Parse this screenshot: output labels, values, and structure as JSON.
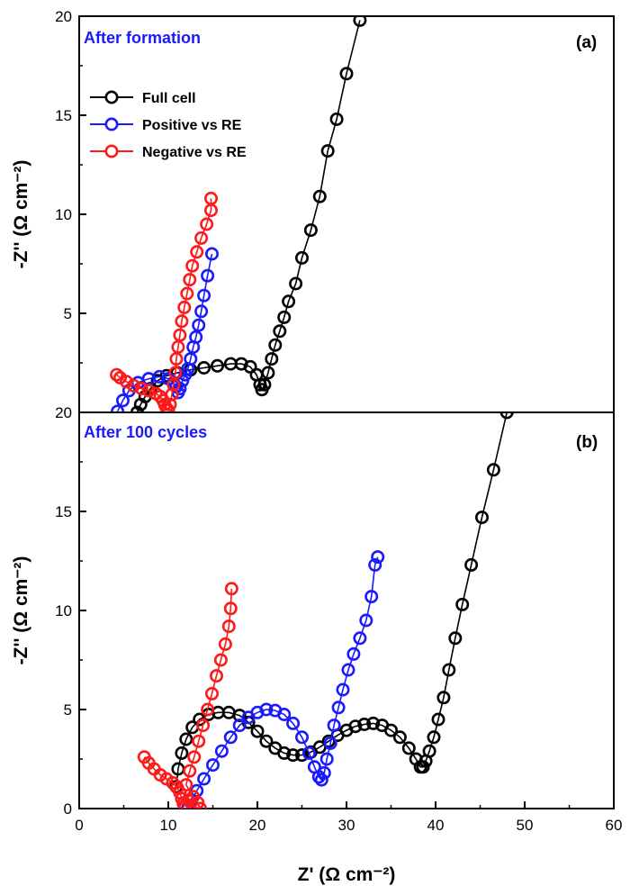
{
  "chart_data": [
    {
      "type": "line",
      "panel_label": "(a)",
      "title": "After formation",
      "title_color": "#1a1aff",
      "xlabel": "Z' (Ω cm⁻²)",
      "ylabel": "-Z'' (Ω cm⁻²)",
      "xlim": [
        0,
        60
      ],
      "ylim": [
        0,
        20
      ],
      "yticks": [
        5,
        10,
        15,
        20
      ],
      "legend_position": "top-left",
      "series": [
        {
          "name": "Full cell",
          "color": "#000000",
          "points": [
            [
              6.5,
              0.0
            ],
            [
              6.9,
              0.4
            ],
            [
              7.4,
              0.8
            ],
            [
              8.0,
              1.2
            ],
            [
              8.8,
              1.6
            ],
            [
              9.8,
              1.85
            ],
            [
              11.0,
              2.0
            ],
            [
              12.5,
              2.15
            ],
            [
              14.0,
              2.25
            ],
            [
              15.5,
              2.35
            ],
            [
              17.0,
              2.45
            ],
            [
              18.2,
              2.45
            ],
            [
              19.2,
              2.3
            ],
            [
              19.9,
              1.9
            ],
            [
              20.3,
              1.4
            ],
            [
              20.5,
              1.15
            ],
            [
              20.8,
              1.4
            ],
            [
              21.2,
              2.0
            ],
            [
              21.6,
              2.7
            ],
            [
              22.0,
              3.4
            ],
            [
              22.5,
              4.1
            ],
            [
              23.0,
              4.8
            ],
            [
              23.5,
              5.6
            ],
            [
              24.3,
              6.5
            ],
            [
              25.0,
              7.8
            ],
            [
              26.0,
              9.2
            ],
            [
              27.0,
              10.9
            ],
            [
              27.9,
              13.2
            ],
            [
              28.9,
              14.8
            ],
            [
              30.0,
              17.1
            ],
            [
              31.5,
              19.8
            ]
          ]
        },
        {
          "name": "Positive vs RE",
          "color": "#1a1aff",
          "points": [
            [
              4.3,
              0.05
            ],
            [
              4.9,
              0.6
            ],
            [
              5.6,
              1.1
            ],
            [
              6.6,
              1.5
            ],
            [
              7.8,
              1.7
            ],
            [
              9.0,
              1.8
            ],
            [
              10.0,
              1.7
            ],
            [
              10.6,
              1.5
            ],
            [
              10.9,
              1.3
            ],
            [
              11.1,
              1.0
            ],
            [
              11.3,
              1.2
            ],
            [
              11.6,
              1.6
            ],
            [
              11.9,
              1.9
            ],
            [
              12.2,
              2.2
            ],
            [
              12.5,
              2.7
            ],
            [
              12.8,
              3.3
            ],
            [
              13.1,
              3.8
            ],
            [
              13.4,
              4.4
            ],
            [
              13.7,
              5.1
            ],
            [
              14.0,
              5.9
            ],
            [
              14.4,
              6.9
            ],
            [
              14.9,
              8.0
            ]
          ]
        },
        {
          "name": "Negative vs RE",
          "color": "#ff1a1a",
          "points": [
            [
              4.2,
              1.9
            ],
            [
              4.6,
              1.75
            ],
            [
              5.3,
              1.55
            ],
            [
              6.1,
              1.35
            ],
            [
              7.0,
              1.2
            ],
            [
              7.8,
              1.1
            ],
            [
              8.6,
              0.95
            ],
            [
              9.1,
              0.8
            ],
            [
              9.4,
              0.6
            ],
            [
              9.6,
              0.4
            ],
            [
              9.8,
              0.2
            ],
            [
              10.0,
              0.1
            ],
            [
              10.2,
              0.4
            ],
            [
              10.4,
              0.9
            ],
            [
              10.6,
              1.4
            ],
            [
              10.8,
              2.0
            ],
            [
              10.9,
              2.7
            ],
            [
              11.1,
              3.3
            ],
            [
              11.3,
              3.9
            ],
            [
              11.5,
              4.6
            ],
            [
              11.8,
              5.3
            ],
            [
              12.1,
              6.0
            ],
            [
              12.4,
              6.7
            ],
            [
              12.7,
              7.4
            ],
            [
              13.2,
              8.1
            ],
            [
              13.7,
              8.8
            ],
            [
              14.3,
              9.5
            ],
            [
              14.8,
              10.2
            ],
            [
              14.8,
              10.8
            ]
          ]
        }
      ]
    },
    {
      "type": "line",
      "panel_label": "(b)",
      "title": "After 100 cycles",
      "title_color": "#1a1aff",
      "xlabel": "Z' (Ω cm⁻²)",
      "ylabel": "-Z'' (Ω cm⁻²)",
      "xlim": [
        0,
        60
      ],
      "ylim": [
        0,
        20
      ],
      "xticks": [
        0,
        10,
        20,
        30,
        40,
        50,
        60
      ],
      "yticks": [
        0,
        5,
        10,
        15,
        20
      ],
      "series": [
        {
          "name": "Full cell",
          "color": "#000000",
          "points": [
            [
              10.9,
              1.1
            ],
            [
              11.1,
              2.0
            ],
            [
              11.5,
              2.8
            ],
            [
              12.0,
              3.5
            ],
            [
              12.7,
              4.1
            ],
            [
              13.5,
              4.5
            ],
            [
              14.5,
              4.75
            ],
            [
              15.6,
              4.85
            ],
            [
              16.8,
              4.85
            ],
            [
              18.0,
              4.7
            ],
            [
              19.0,
              4.35
            ],
            [
              20.0,
              3.9
            ],
            [
              21.0,
              3.4
            ],
            [
              22.0,
              3.05
            ],
            [
              23.0,
              2.8
            ],
            [
              24.0,
              2.7
            ],
            [
              25.0,
              2.7
            ],
            [
              26.0,
              2.85
            ],
            [
              27.0,
              3.1
            ],
            [
              28.0,
              3.4
            ],
            [
              29.0,
              3.7
            ],
            [
              30.0,
              3.95
            ],
            [
              31.0,
              4.15
            ],
            [
              32.0,
              4.25
            ],
            [
              33.0,
              4.3
            ],
            [
              34.0,
              4.2
            ],
            [
              35.0,
              3.95
            ],
            [
              36.0,
              3.6
            ],
            [
              37.0,
              3.05
            ],
            [
              37.8,
              2.5
            ],
            [
              38.3,
              2.1
            ],
            [
              38.6,
              2.1
            ],
            [
              38.9,
              2.4
            ],
            [
              39.3,
              2.9
            ],
            [
              39.8,
              3.6
            ],
            [
              40.3,
              4.5
            ],
            [
              40.9,
              5.6
            ],
            [
              41.5,
              7.0
            ],
            [
              42.2,
              8.6
            ],
            [
              43.0,
              10.3
            ],
            [
              44.0,
              12.3
            ],
            [
              45.2,
              14.7
            ],
            [
              46.5,
              17.1
            ],
            [
              48.0,
              20.0
            ]
          ]
        },
        {
          "name": "Positive vs RE",
          "color": "#1a1aff",
          "points": [
            [
              12.2,
              0.0
            ],
            [
              12.6,
              0.4
            ],
            [
              13.2,
              0.9
            ],
            [
              14.0,
              1.5
            ],
            [
              15.0,
              2.2
            ],
            [
              16.0,
              2.9
            ],
            [
              17.0,
              3.6
            ],
            [
              18.0,
              4.2
            ],
            [
              19.0,
              4.6
            ],
            [
              20.0,
              4.85
            ],
            [
              21.0,
              5.0
            ],
            [
              22.0,
              4.95
            ],
            [
              23.0,
              4.75
            ],
            [
              24.0,
              4.3
            ],
            [
              25.0,
              3.6
            ],
            [
              25.8,
              2.8
            ],
            [
              26.4,
              2.1
            ],
            [
              26.9,
              1.6
            ],
            [
              27.2,
              1.45
            ],
            [
              27.5,
              1.8
            ],
            [
              27.8,
              2.5
            ],
            [
              28.2,
              3.3
            ],
            [
              28.6,
              4.2
            ],
            [
              29.1,
              5.1
            ],
            [
              29.6,
              6.0
            ],
            [
              30.2,
              7.0
            ],
            [
              30.8,
              7.8
            ],
            [
              31.5,
              8.6
            ],
            [
              32.2,
              9.5
            ],
            [
              32.8,
              10.7
            ],
            [
              33.2,
              12.3
            ],
            [
              33.5,
              12.7
            ]
          ]
        },
        {
          "name": "Negative vs RE",
          "color": "#ff1a1a",
          "points": [
            [
              7.3,
              2.6
            ],
            [
              7.8,
              2.3
            ],
            [
              8.4,
              2.0
            ],
            [
              9.1,
              1.7
            ],
            [
              9.8,
              1.5
            ],
            [
              10.5,
              1.3
            ],
            [
              11.0,
              1.05
            ],
            [
              11.3,
              0.8
            ],
            [
              11.5,
              0.5
            ],
            [
              11.7,
              0.25
            ],
            [
              11.9,
              0.15
            ],
            [
              12.3,
              0.4
            ],
            [
              12.8,
              0.6
            ],
            [
              13.3,
              0.3
            ],
            [
              13.6,
              0.0
            ],
            [
              12.0,
              1.2
            ],
            [
              12.4,
              1.9
            ],
            [
              12.9,
              2.6
            ],
            [
              13.4,
              3.4
            ],
            [
              13.9,
              4.2
            ],
            [
              14.4,
              5.0
            ],
            [
              14.9,
              5.8
            ],
            [
              15.4,
              6.7
            ],
            [
              15.9,
              7.5
            ],
            [
              16.4,
              8.3
            ],
            [
              16.8,
              9.2
            ],
            [
              17.0,
              10.1
            ],
            [
              17.1,
              11.1
            ]
          ]
        }
      ]
    }
  ]
}
